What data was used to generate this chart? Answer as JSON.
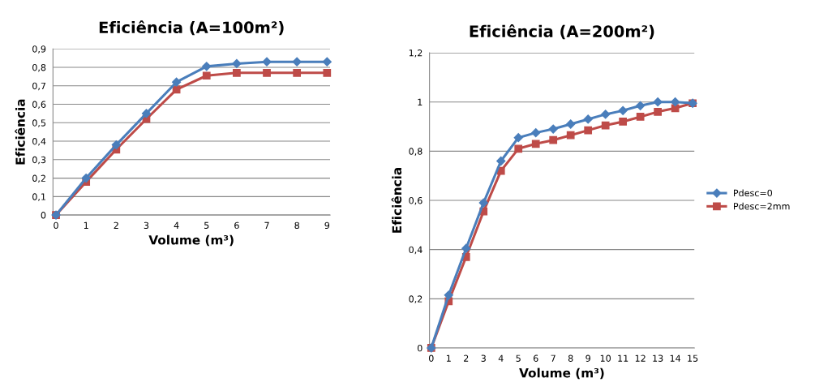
{
  "chart_data": [
    {
      "type": "line",
      "title": "Eficiência (A=100m²)",
      "xlabel": "Volume (m³)",
      "ylabel": "Eficiência",
      "categories": [
        "0",
        "1",
        "2",
        "3",
        "4",
        "5",
        "6",
        "7",
        "8",
        "9"
      ],
      "series": [
        {
          "color": "#4a7ebb",
          "marker": "diamond",
          "values": [
            0,
            0.2,
            0.38,
            0.55,
            0.72,
            0.805,
            0.82,
            0.83,
            0.83,
            0.83
          ]
        },
        {
          "color": "#be4b48",
          "marker": "square",
          "values": [
            0,
            0.18,
            0.355,
            0.52,
            0.68,
            0.755,
            0.77,
            0.77,
            0.77,
            0.77
          ]
        }
      ],
      "ylim": [
        0,
        0.9
      ],
      "yticks": [
        0,
        {
          "value": 0.1,
          "label": "0,1"
        },
        {
          "value": 0.2,
          "label": "0,2"
        },
        {
          "value": 0.3,
          "label": "0,3"
        },
        {
          "value": 0.4,
          "label": "0,4"
        },
        {
          "value": 0.5,
          "label": "0,5"
        },
        {
          "value": 0.6,
          "label": "0,6"
        },
        {
          "value": 0.7,
          "label": "0,7"
        },
        {
          "value": 0.8,
          "label": "0,8"
        },
        {
          "value": 0.9,
          "label": "0,9"
        }
      ],
      "grid": "y",
      "legend": false
    },
    {
      "type": "line",
      "title": "Eficiência (A=200m²)",
      "xlabel": "Volume (m³)",
      "ylabel": "Eficiência",
      "categories": [
        "0",
        "1",
        "2",
        "3",
        "4",
        "5",
        "6",
        "7",
        "8",
        "9",
        "10",
        "11",
        "12",
        "13",
        "14",
        "15"
      ],
      "series": [
        {
          "name": "Pdesc=0",
          "color": "#4a7ebb",
          "marker": "diamond",
          "values": [
            0,
            0.215,
            0.405,
            0.59,
            0.76,
            0.855,
            0.875,
            0.89,
            0.91,
            0.93,
            0.95,
            0.965,
            0.985,
            1.0,
            1.0,
            0.995
          ]
        },
        {
          "name": "Pdesc=2mm",
          "color": "#be4b48",
          "marker": "square",
          "values": [
            0,
            0.19,
            0.37,
            0.555,
            0.72,
            0.81,
            0.83,
            0.845,
            0.865,
            0.885,
            0.905,
            0.92,
            0.94,
            0.96,
            0.975,
            0.995
          ]
        }
      ],
      "ylim": [
        0,
        1.2
      ],
      "yticks": [
        0,
        {
          "value": 0.2,
          "label": "0,2"
        },
        {
          "value": 0.4,
          "label": "0,4"
        },
        {
          "value": 0.6,
          "label": "0,6"
        },
        {
          "value": 0.8,
          "label": "0,8"
        },
        1,
        {
          "value": 1.2,
          "label": "1,2"
        }
      ],
      "grid": "y",
      "legend": "right"
    }
  ]
}
